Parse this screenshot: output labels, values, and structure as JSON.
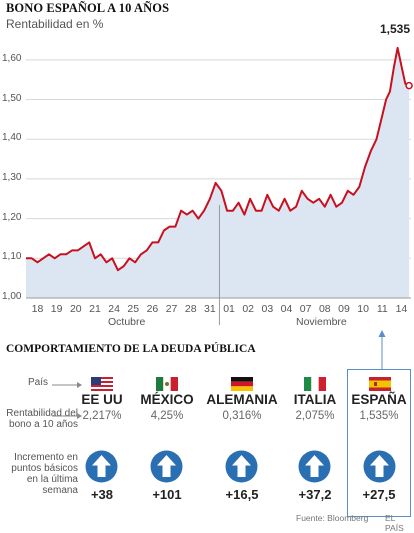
{
  "header": {
    "title": "BONO ESPAÑOL A 10 AÑOS",
    "subtitle": "Rentabilidad en %",
    "peak_label": "1,535"
  },
  "chart_data": {
    "type": "line",
    "title": "BONO ESPAÑOL A 10 AÑOS",
    "ylabel": "Rentabilidad en %",
    "ylim": [
      1.0,
      1.65
    ],
    "y_ticks": [
      "1,00",
      "1,10",
      "1,20",
      "1,30",
      "1,40",
      "1,50",
      "1,60"
    ],
    "x_ticks": [
      "18",
      "19",
      "20",
      "21",
      "24",
      "25",
      "26",
      "27",
      "28",
      "31",
      "01",
      "02",
      "03",
      "04",
      "07",
      "08",
      "09",
      "10",
      "11",
      "14"
    ],
    "x_tick_positions": [
      0,
      1,
      2,
      3,
      4,
      5,
      6,
      7,
      8,
      9,
      10,
      11,
      12,
      13,
      14,
      15,
      16,
      17,
      18,
      19
    ],
    "months": [
      "Octubre",
      "Noviembre"
    ],
    "grid": true,
    "annotation": {
      "label": "1,535",
      "x": 18.9,
      "y": 1.535
    },
    "x": [
      -0.6,
      -0.3,
      0,
      0.3,
      0.6,
      0.9,
      1.2,
      1.5,
      1.8,
      2.1,
      2.4,
      2.7,
      3.0,
      3.3,
      3.6,
      3.9,
      4.2,
      4.5,
      4.8,
      5.1,
      5.4,
      5.7,
      6.0,
      6.3,
      6.6,
      6.9,
      7.2,
      7.5,
      7.8,
      8.1,
      8.4,
      8.7,
      9.0,
      9.3,
      9.6,
      9.9,
      10.2,
      10.5,
      10.8,
      11.1,
      11.4,
      11.7,
      12.0,
      12.3,
      12.6,
      12.9,
      13.2,
      13.5,
      13.8,
      14.1,
      14.4,
      14.7,
      15.0,
      15.3,
      15.6,
      15.9,
      16.2,
      16.5,
      16.8,
      17.1,
      17.4,
      17.7,
      18.0,
      18.2,
      18.4,
      18.6,
      18.8,
      19.0,
      19.2,
      19.4
    ],
    "values": [
      1.1,
      1.1,
      1.09,
      1.1,
      1.11,
      1.1,
      1.11,
      1.11,
      1.12,
      1.12,
      1.13,
      1.14,
      1.1,
      1.11,
      1.09,
      1.1,
      1.07,
      1.08,
      1.1,
      1.09,
      1.11,
      1.12,
      1.14,
      1.14,
      1.17,
      1.18,
      1.18,
      1.22,
      1.21,
      1.22,
      1.2,
      1.22,
      1.25,
      1.29,
      1.27,
      1.22,
      1.22,
      1.24,
      1.21,
      1.25,
      1.22,
      1.22,
      1.26,
      1.23,
      1.22,
      1.25,
      1.22,
      1.23,
      1.27,
      1.25,
      1.24,
      1.25,
      1.23,
      1.26,
      1.23,
      1.24,
      1.27,
      1.26,
      1.28,
      1.33,
      1.37,
      1.4,
      1.46,
      1.5,
      1.52,
      1.58,
      1.63,
      1.585,
      1.54,
      1.535
    ]
  },
  "comparison": {
    "title": "COMPORTAMIENTO DE LA DEUDA PÚBLICA",
    "row_labels": {
      "country": "País",
      "yield": "Rentabilidad del bono a 10 años",
      "change": "Incremento en puntos básicos en la última semana"
    },
    "countries": [
      {
        "name": "EE UU",
        "yield": "2,217%",
        "change": "+38",
        "flag": "us-flag"
      },
      {
        "name": "MÉXICO",
        "yield": "4,25%",
        "change": "+101",
        "flag": "mexico-flag"
      },
      {
        "name": "ALEMANIA",
        "yield": "0,316%",
        "change": "+16,5",
        "flag": "germany-flag"
      },
      {
        "name": "ITALIA",
        "yield": "2,075%",
        "change": "+37,2",
        "flag": "italy-flag"
      },
      {
        "name": "ESPAÑA",
        "yield": "1,535%",
        "change": "+27,5",
        "flag": "spain-flag"
      }
    ]
  },
  "footer": {
    "source": "Fuente: Bloomberg",
    "brand": "EL PAÍS"
  },
  "colors": {
    "line": "#c8101e",
    "area": "#dce6f3",
    "arrow_icon": "#2b6fb3",
    "highlight_border": "#5b8dc9"
  }
}
